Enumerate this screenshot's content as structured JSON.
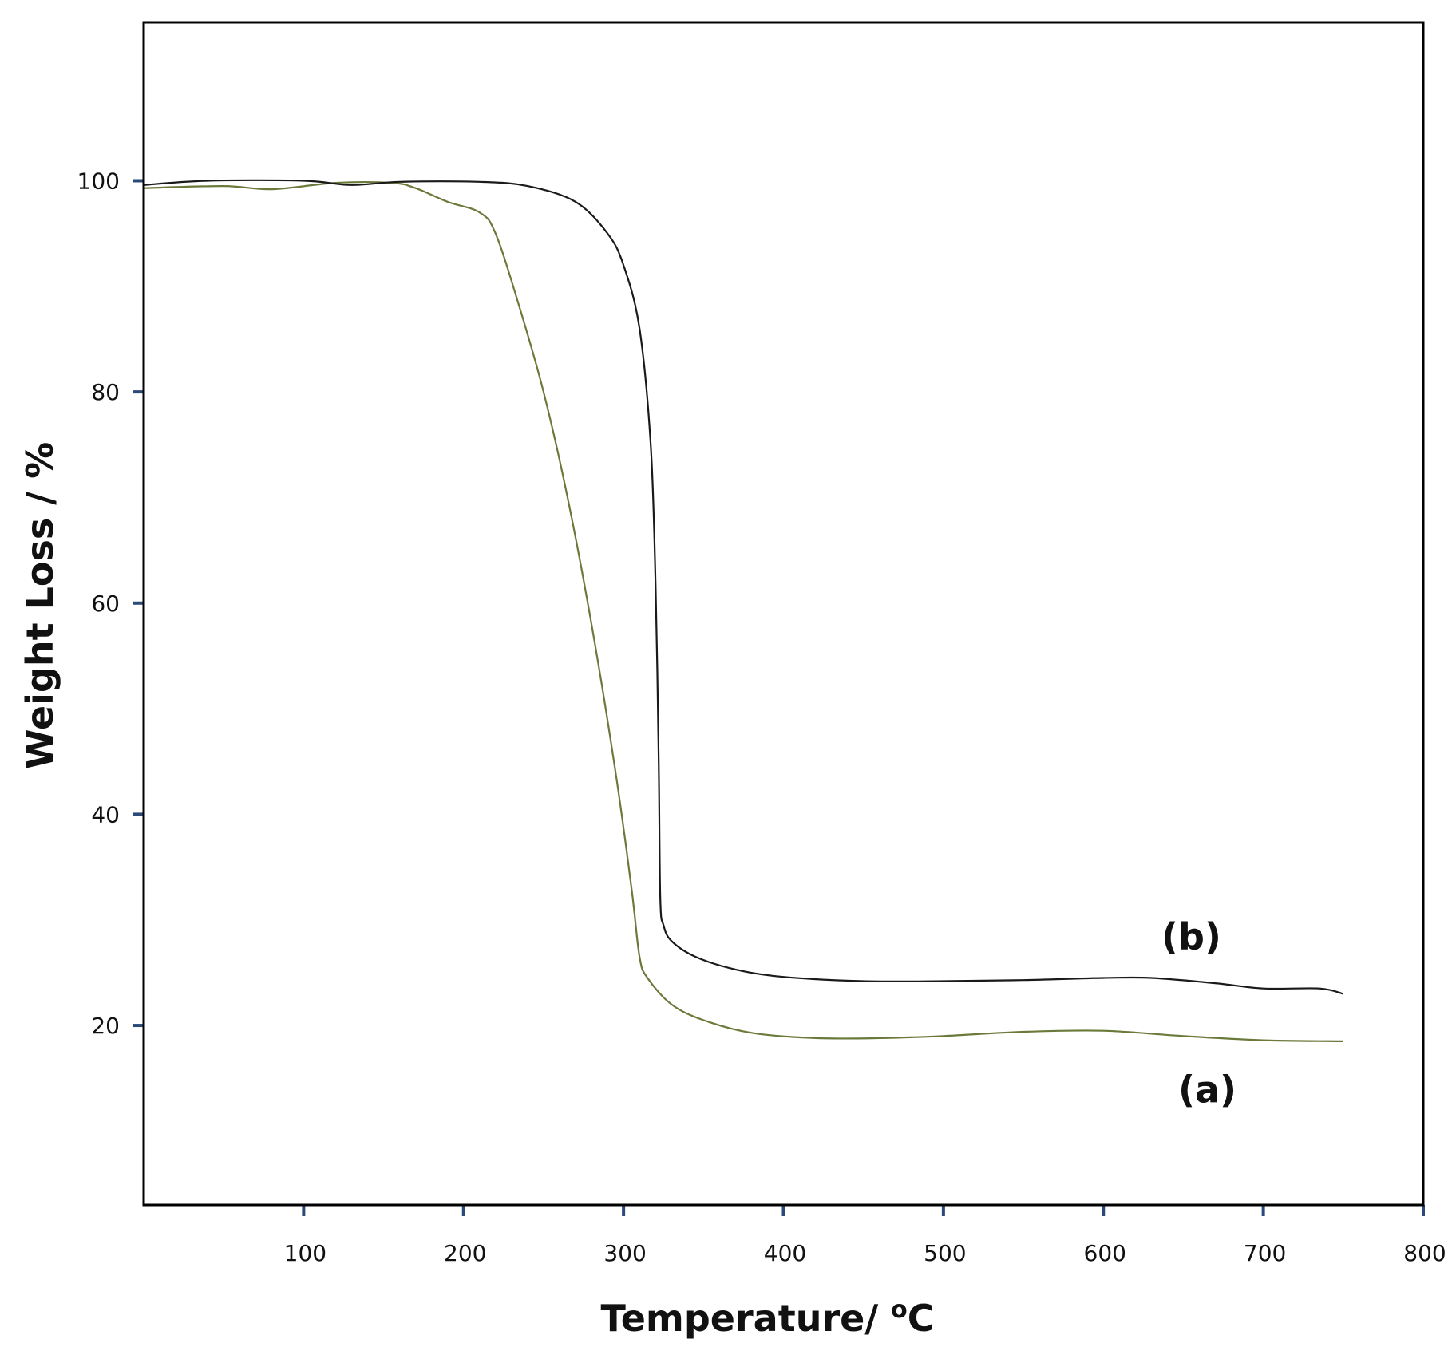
{
  "chart_data": {
    "type": "line",
    "xlabel": "Temperature/ ",
    "xlabel_super": "o",
    "xlabel_tail": "C",
    "ylabel": "Weight Loss / %",
    "xlim": [
      0,
      800
    ],
    "ylim": [
      3,
      115
    ],
    "xticks": [
      100,
      200,
      300,
      400,
      500,
      600,
      700,
      800
    ],
    "yticks": [
      20,
      40,
      60,
      80,
      100
    ],
    "grid": false,
    "colors": {
      "frame": "#000000",
      "tick": "#2b4a7a",
      "series_a": "#6b7a3a",
      "series_b": "#1a1a1a"
    },
    "series": [
      {
        "name": "(a)",
        "x": [
          0,
          50,
          80,
          120,
          155,
          170,
          190,
          210,
          220,
          235,
          250,
          265,
          280,
          295,
          305,
          310,
          315,
          330,
          350,
          380,
          420,
          460,
          500,
          550,
          600,
          650,
          700,
          750
        ],
        "y": [
          99.3,
          99.5,
          99.2,
          99.8,
          99.8,
          99.3,
          98.0,
          97.0,
          95.0,
          88.0,
          80.0,
          70.0,
          58.0,
          44.0,
          33.0,
          26.5,
          24.5,
          22.0,
          20.5,
          19.3,
          18.8,
          18.8,
          19.0,
          19.4,
          19.5,
          19.0,
          18.6,
          18.5
        ]
      },
      {
        "name": "(b)",
        "x": [
          0,
          40,
          100,
          130,
          160,
          210,
          240,
          270,
          290,
          300,
          310,
          317,
          320,
          322,
          323,
          325,
          330,
          345,
          370,
          400,
          450,
          500,
          550,
          600,
          630,
          670,
          700,
          735,
          750
        ],
        "y": [
          99.6,
          100.0,
          100.0,
          99.6,
          99.9,
          99.9,
          99.5,
          98.0,
          95.0,
          92.0,
          86.0,
          75.0,
          62.0,
          45.0,
          32.0,
          29.5,
          28.0,
          26.5,
          25.3,
          24.6,
          24.2,
          24.2,
          24.3,
          24.5,
          24.5,
          24.0,
          23.5,
          23.5,
          23.0
        ]
      }
    ],
    "annotations": [
      {
        "text": "(b)",
        "x": 655,
        "y": 27.2
      },
      {
        "text": "(a)",
        "x": 665,
        "y": 12.7
      }
    ]
  }
}
